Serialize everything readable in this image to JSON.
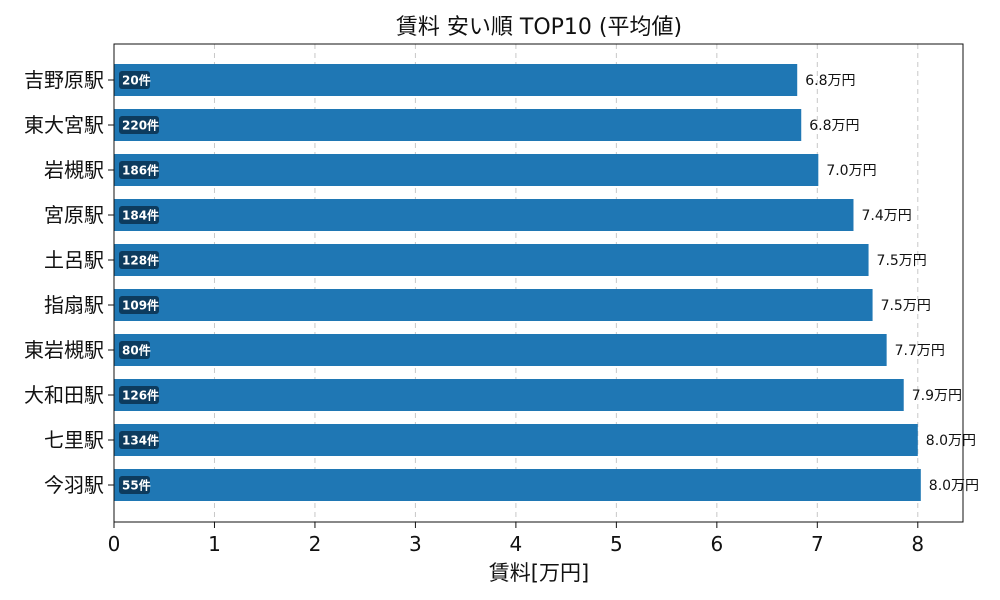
{
  "chart_data": {
    "type": "bar",
    "orientation": "horizontal",
    "title": "賃料 安い順 TOP10 (平均値)",
    "xlabel": "賃料[万円]",
    "ylabel": "",
    "xlim": [
      0,
      8.45
    ],
    "xticks": [
      "0",
      "1",
      "2",
      "3",
      "4",
      "5",
      "6",
      "7",
      "8"
    ],
    "grid": "x-dashed",
    "bar_color": "#1f77b4",
    "badge_color": "#0d3b5e",
    "categories": [
      "吉野原駅",
      "東大宮駅",
      "岩槻駅",
      "宮原駅",
      "土呂駅",
      "指扇駅",
      "東岩槻駅",
      "大和田駅",
      "七里駅",
      "今羽駅"
    ],
    "values": [
      6.8,
      6.84,
      7.01,
      7.36,
      7.51,
      7.55,
      7.69,
      7.86,
      8.0,
      8.03
    ],
    "value_labels": [
      "6.8万円",
      "6.8万円",
      "7.0万円",
      "7.4万円",
      "7.5万円",
      "7.5万円",
      "7.7万円",
      "7.9万円",
      "8.0万円",
      "8.0万円"
    ],
    "counts": [
      "20件",
      "220件",
      "186件",
      "184件",
      "128件",
      "109件",
      "80件",
      "126件",
      "134件",
      "55件"
    ]
  }
}
